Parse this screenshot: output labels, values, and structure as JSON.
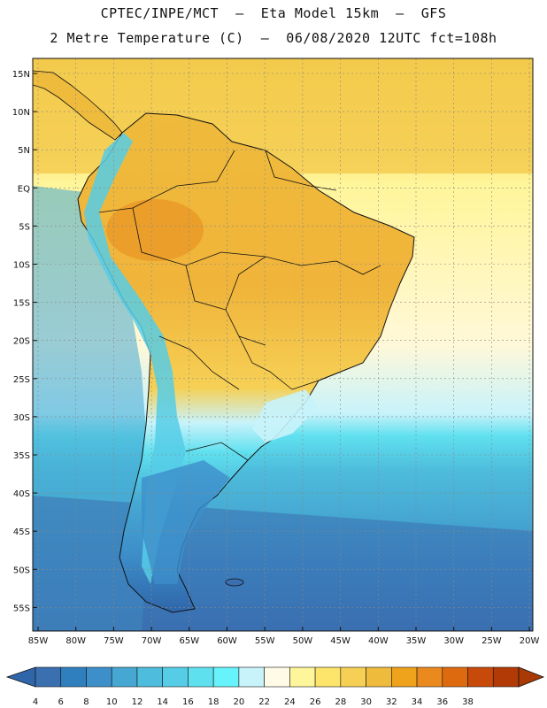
{
  "title_line1": "CPTEC/INPE/MCT  –  Eta Model 15km  –  GFS",
  "title_line2": "2 Metre Temperature (C)  –  06/08/2020 12UTC fct=108h",
  "lat_labels": [
    "15N",
    "10N",
    "5N",
    "EQ",
    "5S",
    "10S",
    "15S",
    "20S",
    "25S",
    "30S",
    "35S",
    "40S",
    "45S",
    "50S",
    "55S"
  ],
  "lon_labels": [
    "85W",
    "80W",
    "75W",
    "70W",
    "65W",
    "60W",
    "55W",
    "50W",
    "45W",
    "40W",
    "35W",
    "30W",
    "25W",
    "20W"
  ],
  "colorbar": {
    "labels": [
      "4",
      "6",
      "8",
      "10",
      "12",
      "14",
      "16",
      "18",
      "20",
      "22",
      "24",
      "26",
      "28",
      "30",
      "32",
      "34",
      "36",
      "38"
    ],
    "colors": [
      "#3a6fb0",
      "#2f7fbf",
      "#3d8fca",
      "#46a8d2",
      "#4ebcdc",
      "#56cde6",
      "#5fe0ef",
      "#66f3fb",
      "#c8f3fb",
      "#fffbe6",
      "#fff59a",
      "#fde46b",
      "#f6d055",
      "#efbb3c",
      "#efa21c",
      "#ea8a1e",
      "#de6a0f",
      "#c84a0a",
      "#b23a06"
    ],
    "low_color": "#2f66aa",
    "high_color": "#a93a06"
  }
}
